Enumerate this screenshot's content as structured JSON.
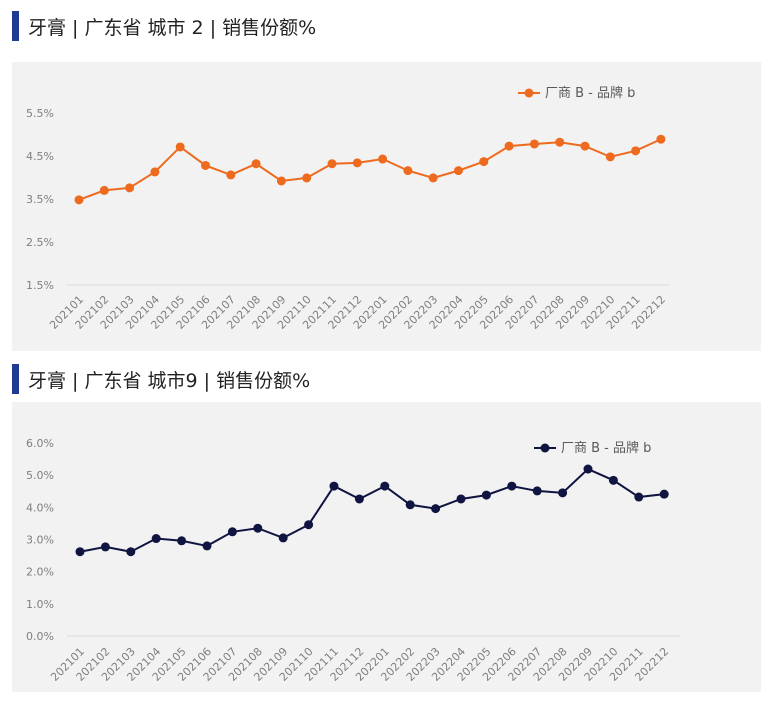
{
  "charts": [
    {
      "title": "牙膏 | 广东省 城市 2 |  销售份额%"
    },
    {
      "title": "牙膏 | 广东省 城市9 | 销售份额%"
    }
  ],
  "chart_data": [
    {
      "type": "line",
      "title": "牙膏 | 广东省 城市 2 |  销售份额%",
      "xlabel": "",
      "ylabel": "",
      "categories": [
        "202101",
        "202102",
        "202103",
        "202104",
        "202105",
        "202106",
        "202107",
        "202108",
        "202109",
        "202110",
        "202111",
        "202112",
        "202201",
        "202202",
        "202203",
        "202204",
        "202205",
        "202206",
        "202207",
        "202208",
        "202209",
        "202210",
        "202211",
        "202212"
      ],
      "yticks": [
        "1.5%",
        "2.5%",
        "3.5%",
        "4.5%",
        "5.5%"
      ],
      "ylim": [
        1.5,
        5.5
      ],
      "series": [
        {
          "name": "厂商 B - 品牌 b",
          "color": "#ed6a1e",
          "values": [
            3.48,
            3.7,
            3.76,
            4.13,
            4.71,
            4.28,
            4.06,
            4.32,
            3.92,
            3.99,
            4.32,
            4.34,
            4.43,
            4.16,
            3.99,
            4.16,
            4.37,
            4.73,
            4.78,
            4.82,
            4.73,
            4.48,
            4.62,
            4.89
          ]
        }
      ],
      "legend_position": "top-right",
      "grid": false
    },
    {
      "type": "line",
      "title": "牙膏 | 广东省 城市9 | 销售份额%",
      "xlabel": "",
      "ylabel": "",
      "categories": [
        "202101",
        "202102",
        "202103",
        "202104",
        "202105",
        "202106",
        "202107",
        "202108",
        "202109",
        "202110",
        "202111",
        "202112",
        "202201",
        "202202",
        "202203",
        "202204",
        "202205",
        "202206",
        "202207",
        "202208",
        "202209",
        "202210",
        "202211",
        "202212"
      ],
      "yticks": [
        "0.0%",
        "1.0%",
        "2.0%",
        "3.0%",
        "4.0%",
        "5.0%",
        "6.0%"
      ],
      "ylim": [
        0,
        6
      ],
      "series": [
        {
          "name": "厂商 B - 品牌 b",
          "color": "#0f1440",
          "values": [
            2.62,
            2.77,
            2.62,
            3.03,
            2.96,
            2.8,
            3.24,
            3.35,
            3.05,
            3.46,
            4.66,
            4.26,
            4.66,
            4.08,
            3.96,
            4.26,
            4.38,
            4.66,
            4.51,
            4.45,
            5.19,
            4.84,
            4.32,
            4.41
          ]
        }
      ],
      "legend_position": "top-right",
      "grid": false
    }
  ]
}
